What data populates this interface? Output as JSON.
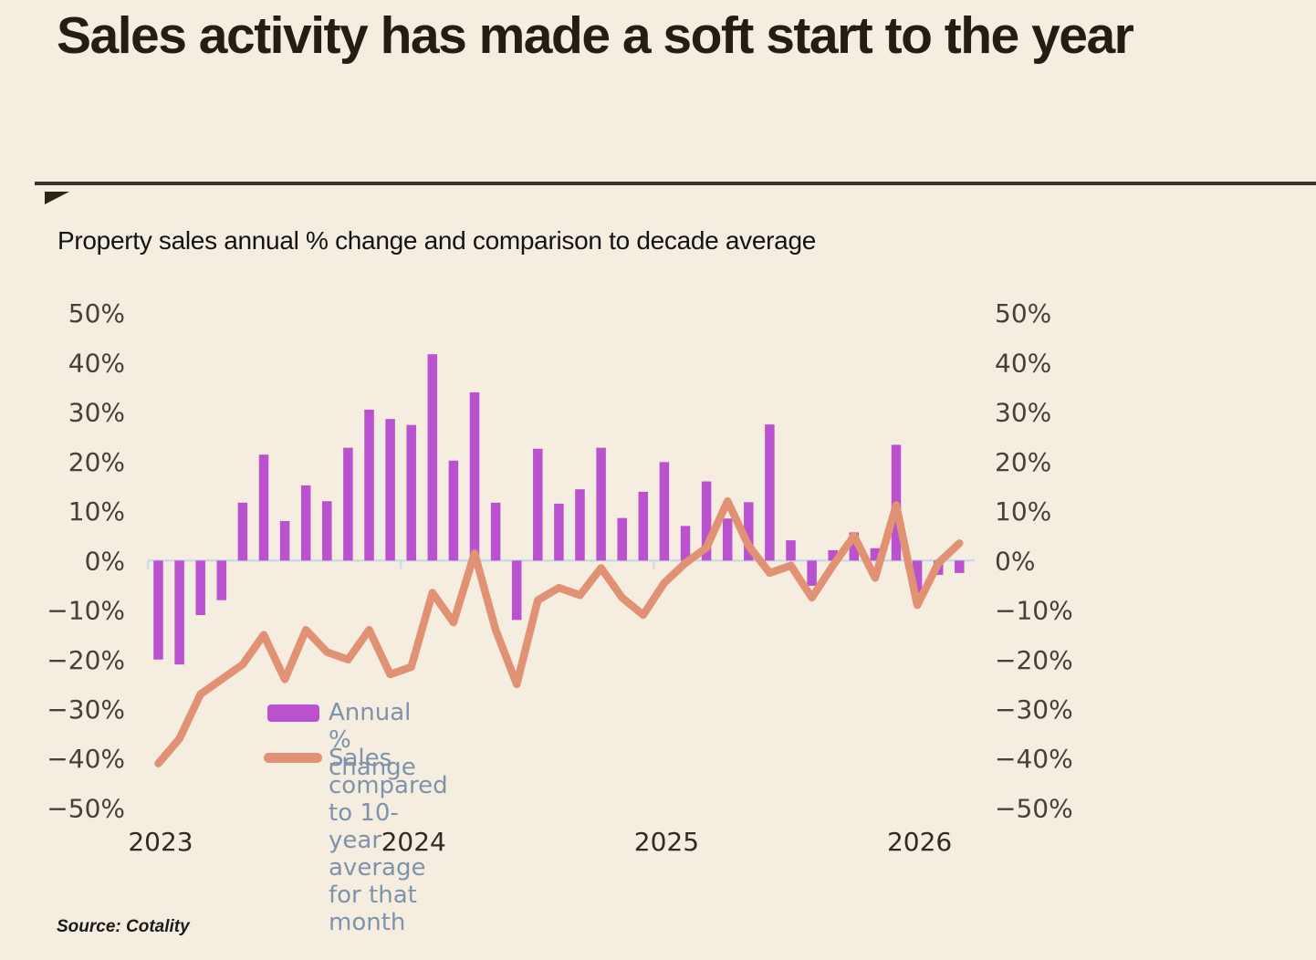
{
  "header": {
    "title": "Sales activity has made a soft start to the year"
  },
  "subtitle": "Property sales annual % change and comparison to decade average",
  "source_note": "Source: Cotality",
  "legend": {
    "bars_label": "Annual % change",
    "line_label": "Sales compared to 10-year average for that month"
  },
  "chart_data": {
    "type": "bar+line combo",
    "title": "Property sales annual % change and comparison to decade average",
    "categories": [
      "Jan 2023",
      "Feb 2023",
      "Mar 2023",
      "Apr 2023",
      "May 2023",
      "Jun 2023",
      "Jul 2023",
      "Aug 2023",
      "Sep 2023",
      "Oct 2023",
      "Nov 2023",
      "Dec 2023",
      "Jan 2024",
      "Feb 2024",
      "Mar 2024",
      "Apr 2024",
      "May 2024",
      "Jun 2024",
      "Jul 2024",
      "Aug 2024",
      "Sep 2024",
      "Oct 2024",
      "Nov 2024",
      "Dec 2024",
      "Jan 2025",
      "Feb 2025",
      "Mar 2025",
      "Apr 2025",
      "May 2025",
      "Jun 2025",
      "Jul 2025",
      "Aug 2025",
      "Sep 2025",
      "Oct 2025",
      "Nov 2025",
      "Dec 2025",
      "Jan 2026",
      "Feb 2026",
      "Mar 2026"
    ],
    "series": [
      {
        "name": "Annual % change",
        "type": "bar",
        "values": [
          -20,
          -21,
          -11,
          -8,
          11.7,
          21.4,
          8,
          15.2,
          12,
          22.8,
          30.5,
          28.6,
          27.4,
          41.7,
          20.2,
          34,
          11.7,
          -12,
          22.6,
          11.5,
          14.4,
          22.8,
          8.6,
          13.9,
          19.9,
          7,
          16,
          8.5,
          11.8,
          27.5,
          4.1,
          -5.1,
          2.1,
          5.7,
          2.5,
          23.4,
          -6.5,
          -2.9,
          -2.5
        ]
      },
      {
        "name": "Sales compared to 10-year average for that month",
        "type": "line",
        "values": [
          -41,
          -36,
          -27,
          -24,
          -21,
          -15,
          -24,
          -14,
          -18.5,
          -20,
          -14,
          -23,
          -21.5,
          -6.5,
          -12.5,
          1.5,
          -14,
          -25,
          -8,
          -5.5,
          -7,
          -1.5,
          -7.5,
          -11,
          -4.5,
          -0.5,
          2.6,
          12,
          3,
          -2.5,
          -1,
          -7.5,
          -1,
          5,
          -3.5,
          11.2,
          -9,
          -0.5,
          3.5
        ]
      }
    ],
    "yticks": [
      {
        "label": "50%",
        "value": 50
      },
      {
        "label": "40%",
        "value": 40
      },
      {
        "label": "30%",
        "value": 30
      },
      {
        "label": "20%",
        "value": 20
      },
      {
        "label": "10%",
        "value": 10
      },
      {
        "label": "0%",
        "value": 0
      },
      {
        "label": "−10%",
        "value": -10
      },
      {
        "label": "−20%",
        "value": -20
      },
      {
        "label": "−30%",
        "value": -30
      },
      {
        "label": "−40%",
        "value": -40
      },
      {
        "label": "−50%",
        "value": -50
      }
    ],
    "x_year_labels": [
      "2023",
      "2024",
      "2025",
      "2026"
    ],
    "ylim": [
      -50,
      50
    ],
    "y_axis_sides": "both",
    "grid": "zero line only",
    "legend_position": "inside lower-left",
    "colors": {
      "bar": "#ba51ce",
      "line": "#e19274",
      "axis": "#ccdae6",
      "legend_text": "#7e93ab",
      "background": "#f4ede0"
    }
  }
}
